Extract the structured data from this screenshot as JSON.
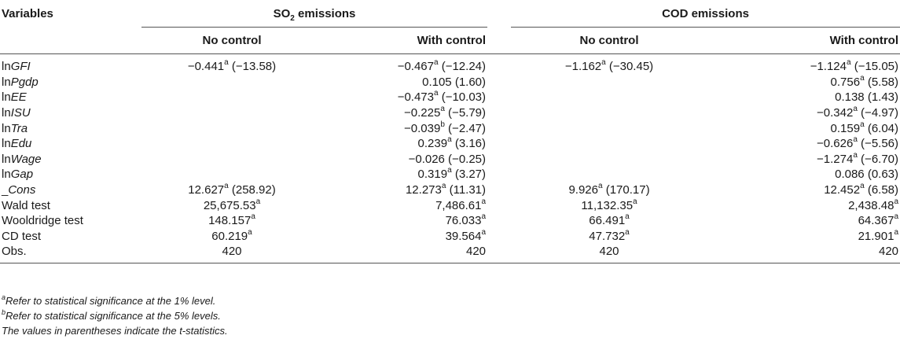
{
  "header": {
    "variables_label": "Variables",
    "so2_group": "SO",
    "so2_sub": "2",
    "so2_suffix": " emissions",
    "cod_group": "COD emissions",
    "no_control": "No control",
    "with_control": "With control"
  },
  "rows": [
    {
      "pre": "ln",
      "name": "GFI",
      "italic": true,
      "cells": [
        {
          "v": "−0.441",
          "sup": "a",
          "t": " (−13.58)"
        },
        {
          "v": "−0.467",
          "sup": "a",
          "t": " (−12.24)"
        },
        {
          "v": "−1.162",
          "sup": "a",
          "t": " (−30.45)"
        },
        {
          "v": "−1.124",
          "sup": "a",
          "t": " (−15.05)"
        }
      ]
    },
    {
      "pre": "ln",
      "name": "Pgdp",
      "italic": true,
      "cells": [
        {
          "v": "",
          "sup": "",
          "t": ""
        },
        {
          "v": "0.105",
          "sup": "",
          "t": " (1.60)"
        },
        {
          "v": "",
          "sup": "",
          "t": ""
        },
        {
          "v": "0.756",
          "sup": "a",
          "t": " (5.58)"
        }
      ]
    },
    {
      "pre": "ln",
      "name": "EE",
      "italic": true,
      "cells": [
        {
          "v": "",
          "sup": "",
          "t": ""
        },
        {
          "v": "−0.473",
          "sup": "a",
          "t": " (−10.03)"
        },
        {
          "v": "",
          "sup": "",
          "t": ""
        },
        {
          "v": "0.138",
          "sup": "",
          "t": " (1.43)"
        }
      ]
    },
    {
      "pre": "ln",
      "name": "ISU",
      "italic": true,
      "cells": [
        {
          "v": "",
          "sup": "",
          "t": ""
        },
        {
          "v": "−0.225",
          "sup": "a",
          "t": " (−5.79)"
        },
        {
          "v": "",
          "sup": "",
          "t": ""
        },
        {
          "v": "−0.342",
          "sup": "a",
          "t": " (−4.97)"
        }
      ]
    },
    {
      "pre": "ln",
      "name": "Tra",
      "italic": true,
      "cells": [
        {
          "v": "",
          "sup": "",
          "t": ""
        },
        {
          "v": "−0.039",
          "sup": "b",
          "t": " (−2.47)"
        },
        {
          "v": "",
          "sup": "",
          "t": ""
        },
        {
          "v": "0.159",
          "sup": "a",
          "t": " (6.04)"
        }
      ]
    },
    {
      "pre": "ln",
      "name": "Edu",
      "italic": true,
      "cells": [
        {
          "v": "",
          "sup": "",
          "t": ""
        },
        {
          "v": "0.239",
          "sup": "a",
          "t": " (3.16)"
        },
        {
          "v": "",
          "sup": "",
          "t": ""
        },
        {
          "v": "−0.626",
          "sup": "a",
          "t": " (−5.56)"
        }
      ]
    },
    {
      "pre": "ln",
      "name": "Wage",
      "italic": true,
      "cells": [
        {
          "v": "",
          "sup": "",
          "t": ""
        },
        {
          "v": "−0.026",
          "sup": "",
          "t": " (−0.25)"
        },
        {
          "v": "",
          "sup": "",
          "t": ""
        },
        {
          "v": "−1.274",
          "sup": "a",
          "t": " (−6.70)"
        }
      ]
    },
    {
      "pre": "ln",
      "name": "Gap",
      "italic": true,
      "cells": [
        {
          "v": "",
          "sup": "",
          "t": ""
        },
        {
          "v": "0.319",
          "sup": "a",
          "t": " (3.27)"
        },
        {
          "v": "",
          "sup": "",
          "t": ""
        },
        {
          "v": "0.086",
          "sup": "",
          "t": " (0.63)"
        }
      ]
    },
    {
      "pre": "_",
      "name": "Cons",
      "italic": true,
      "cells": [
        {
          "v": "12.627",
          "sup": "a",
          "t": " (258.92)"
        },
        {
          "v": "12.273",
          "sup": "a",
          "t": " (11.31)"
        },
        {
          "v": "9.926",
          "sup": "a",
          "t": " (170.17)"
        },
        {
          "v": "12.452",
          "sup": "a",
          "t": " (6.58)"
        }
      ]
    },
    {
      "pre": "",
      "name": "Wald test",
      "italic": false,
      "cells": [
        {
          "v": "25,675.53",
          "sup": "a",
          "t": ""
        },
        {
          "v": "7,486.61",
          "sup": "a",
          "t": ""
        },
        {
          "v": "11,132.35",
          "sup": "a",
          "t": ""
        },
        {
          "v": "2,438.48",
          "sup": "a",
          "t": ""
        }
      ]
    },
    {
      "pre": "",
      "name": "Wooldridge test",
      "italic": false,
      "cells": [
        {
          "v": "148.157",
          "sup": "a",
          "t": ""
        },
        {
          "v": "76.033",
          "sup": "a",
          "t": ""
        },
        {
          "v": "66.491",
          "sup": "a",
          "t": ""
        },
        {
          "v": "64.367",
          "sup": "a",
          "t": ""
        }
      ]
    },
    {
      "pre": "",
      "name": "CD test",
      "italic": false,
      "cells": [
        {
          "v": "60.219",
          "sup": "a",
          "t": ""
        },
        {
          "v": "39.564",
          "sup": "a",
          "t": ""
        },
        {
          "v": "47.732",
          "sup": "a",
          "t": ""
        },
        {
          "v": "21.901",
          "sup": "a",
          "t": ""
        }
      ]
    },
    {
      "pre": "",
      "name": "Obs.",
      "italic": false,
      "cells": [
        {
          "v": "420",
          "sup": "",
          "t": ""
        },
        {
          "v": "420",
          "sup": "",
          "t": ""
        },
        {
          "v": "420",
          "sup": "",
          "t": ""
        },
        {
          "v": "420",
          "sup": "",
          "t": ""
        }
      ]
    }
  ],
  "notes": {
    "a_sup": "a",
    "a_text": "Refer to statistical significance at the 1% level.",
    "b_sup": "b",
    "b_text": "Refer to statistical significance at the 5% levels.",
    "paren_text": "The values in parentheses indicate the t-statistics."
  }
}
